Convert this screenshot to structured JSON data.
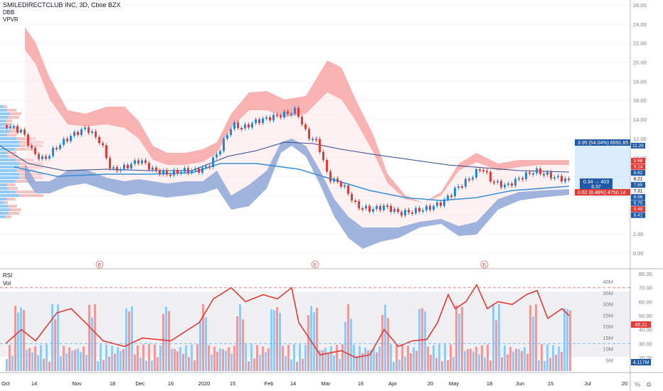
{
  "header": {
    "title": "SMILEDIRECTCLUB INC, 3D, Cboe BZX",
    "ind1": "DBB",
    "ind2": "VPVR"
  },
  "rsi_header": {
    "ind1": "RSI",
    "ind2": "Vol"
  },
  "colors": {
    "up": "#1e88e5",
    "down": "#e53935",
    "vol_up": "#90caf9",
    "vol_down": "#ef9a9a",
    "upper_band": "#f8a5a5",
    "lower_band": "#8ea6d6",
    "rsi": "#e53935",
    "ma_dark": "#2f4a8a",
    "ma_light": "#3a8fd6"
  },
  "earnings_marker": "E",
  "settings_icons": [
    "%",
    "log",
    "auto"
  ],
  "chart_data": [
    {
      "type": "candlestick",
      "title": "SMILEDIRECTCLUB INC, 3D, Cboe BZX",
      "y_ticks": [
        "26.00",
        "24.00",
        "22.00",
        "20.00",
        "18.00",
        "16.00",
        "14.00",
        "12.00",
        "10.00",
        "8.00",
        "6.00",
        "4.00",
        "2.00",
        "0.00"
      ],
      "ylim": [
        -1,
        27
      ],
      "x_labels": [
        "Oct",
        "14",
        "Nov",
        "18",
        "Dec",
        "16",
        "2020",
        "15",
        "Feb",
        "14",
        "Mar",
        "16",
        "Apr",
        "20",
        "May",
        "18",
        "Jun",
        "15",
        "Jul",
        "20"
      ],
      "price_labels": [
        {
          "text": "11.26",
          "value": 11.26,
          "color": "#1e5aa8"
        },
        {
          "text": "9.68",
          "value": 9.68,
          "color": "#e53935"
        },
        {
          "text": "9.14",
          "value": 9.14,
          "color": "#e53935"
        },
        {
          "text": "8.82",
          "value": 8.82,
          "color": "#1e5aa8"
        },
        {
          "text": "8.21",
          "value": 8.21,
          "color": "#f2f2f2"
        },
        {
          "text": "7.65",
          "value": 7.65,
          "color": "#1e5aa8"
        },
        {
          "text": "7.31",
          "value": 7.31,
          "color": "#f2f2f2"
        },
        {
          "text": "6.96",
          "value": 6.96,
          "color": "#1e5aa8"
        },
        {
          "text": "6.70",
          "value": 6.7,
          "color": "#1e5aa8"
        },
        {
          "text": "6.49",
          "value": 6.49,
          "color": "#e53935"
        },
        {
          "text": "6.42",
          "value": 6.42,
          "color": "#1e5aa8"
        }
      ],
      "measure": {
        "upper": "3.95 (54.04%) 6591.85",
        "middle": [
          "0.34 → 403",
          "6.37"
        ],
        "lower": "0.62 (8.48%) 4750.14"
      },
      "earnings_dates": [
        "Nov",
        "Mar",
        "May"
      ]
    },
    {
      "type": "line",
      "title": "RSI",
      "y_ticks": [
        "80.00",
        "70.00",
        "60.00",
        "50.00",
        "40.00",
        "30.00",
        "20.00"
      ],
      "ylim": [
        16,
        84
      ],
      "guides": [
        70,
        30
      ],
      "current": "49.21"
    },
    {
      "type": "bar",
      "title": "Vol",
      "y_ticks": [
        "40M",
        "35M",
        "30M",
        "25M",
        "20M",
        "15M",
        "10M",
        "5M"
      ],
      "ylim": [
        0,
        40
      ],
      "current": "4.117M"
    }
  ]
}
